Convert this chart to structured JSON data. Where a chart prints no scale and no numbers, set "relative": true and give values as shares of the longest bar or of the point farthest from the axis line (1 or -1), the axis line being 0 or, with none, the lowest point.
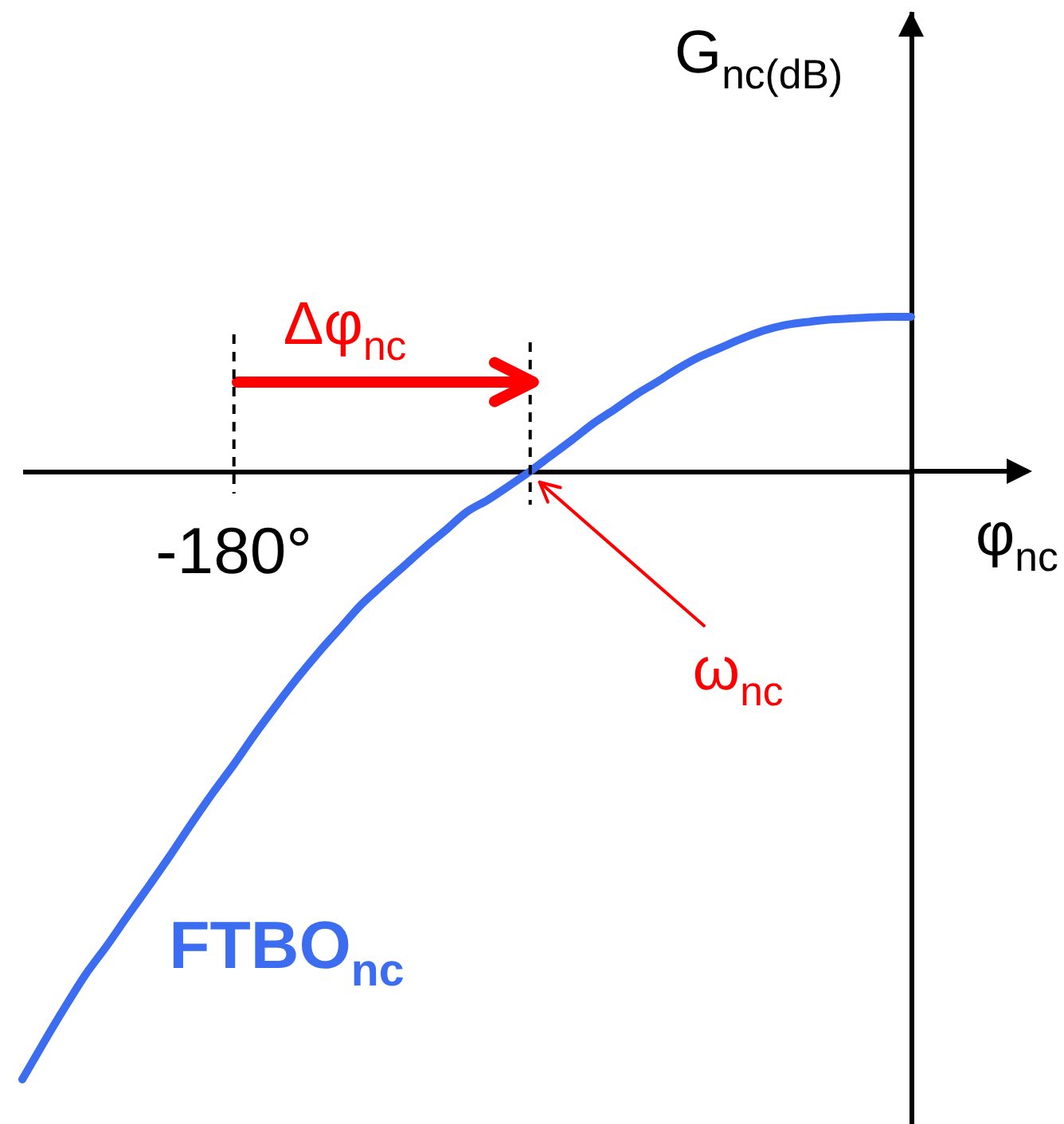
{
  "chart_data": {
    "type": "line",
    "xlabel": "φ$_{nc}$",
    "ylabel": "G$_{nc(dB)}$",
    "relative": true,
    "categories": [
      null,
      null,
      null,
      null,
      null,
      null,
      null,
      null,
      null,
      null,
      null,
      null,
      null,
      null,
      null,
      null,
      null,
      null,
      null,
      null,
      null,
      null,
      null,
      null,
      null,
      null,
      null,
      null,
      null,
      null,
      null,
      null,
      null,
      null,
      null,
      null,
      null,
      null,
      null,
      null,
      null,
      null,
      null
    ],
    "series": [
      {
        "name": "FTBO$_{nc}$",
        "color": "#3c6df0",
        "values": [
          -1,
          -0.94,
          -0.882,
          -0.827,
          -0.78,
          -0.73,
          -0.681,
          -0.631,
          -0.579,
          -0.529,
          -0.482,
          -0.432,
          -0.385,
          -0.34,
          -0.298,
          -0.259,
          -0.22,
          -0.188,
          -0.157,
          -0.126,
          -0.097,
          -0.067,
          -0.047,
          -0.024,
          0,
          0.026,
          0.052,
          0.079,
          0.102,
          0.126,
          0.147,
          0.169,
          0.188,
          0.203,
          0.218,
          0.231,
          0.24,
          0.245,
          0.249,
          0.251,
          0.253,
          0.254,
          0.254
        ]
      }
    ],
    "annotations": [
      "Δφ$_{nc}$",
      "-180°",
      "ω$_{nc}$"
    ]
  }
}
